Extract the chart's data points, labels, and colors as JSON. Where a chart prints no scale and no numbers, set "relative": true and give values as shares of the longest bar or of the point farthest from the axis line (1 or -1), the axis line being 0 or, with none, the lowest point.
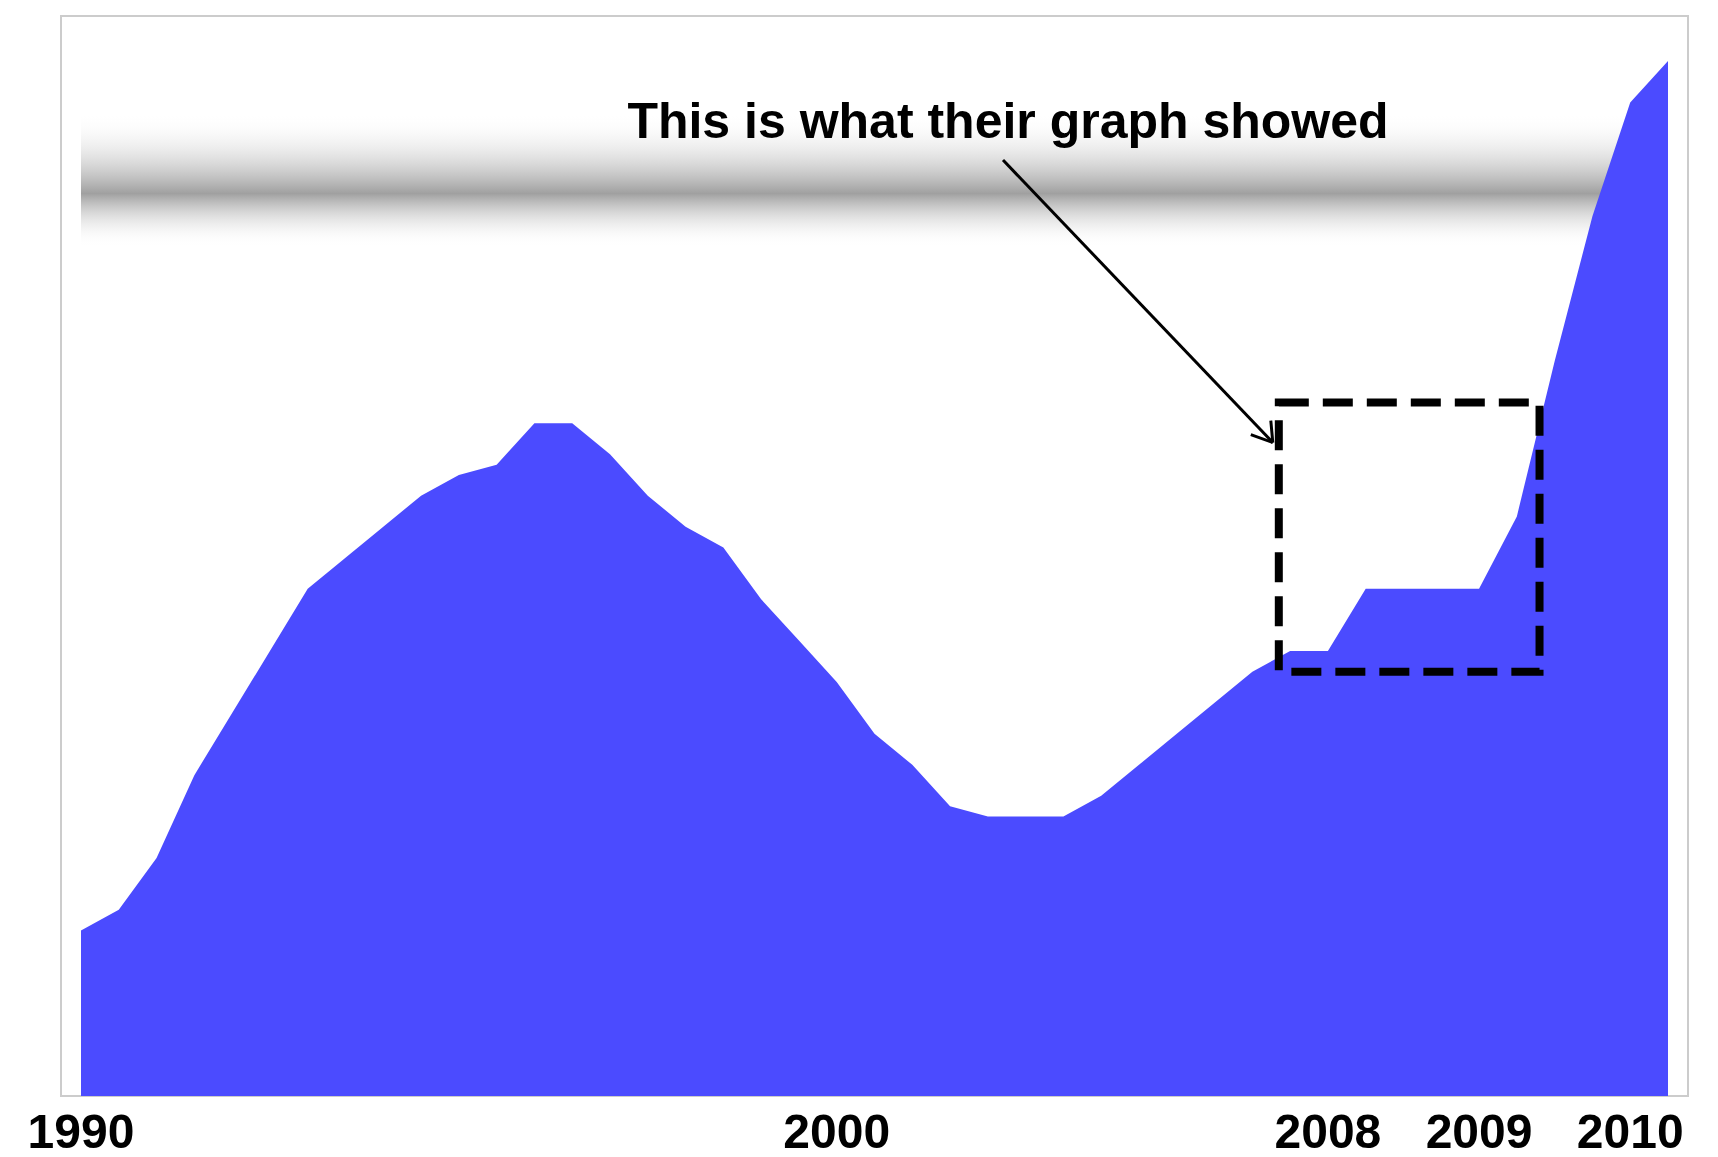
{
  "chart_data": {
    "type": "area",
    "relative": true,
    "color": "#4b4bff",
    "categories": [
      "1990",
      null,
      null,
      null,
      null,
      null,
      null,
      null,
      null,
      null,
      null,
      null,
      null,
      null,
      null,
      null,
      null,
      null,
      null,
      null,
      "2000",
      null,
      null,
      null,
      null,
      null,
      null,
      null,
      null,
      null,
      null,
      null,
      null,
      "2008",
      null,
      null,
      null,
      "2009",
      null,
      null,
      null,
      "2010",
      null
    ],
    "values": [
      0.16,
      0.18,
      0.23,
      0.31,
      0.37,
      0.43,
      0.49,
      0.52,
      0.55,
      0.58,
      0.6,
      0.61,
      0.65,
      0.65,
      0.62,
      0.58,
      0.55,
      0.53,
      0.48,
      0.44,
      0.4,
      0.35,
      0.32,
      0.28,
      0.27,
      0.27,
      0.27,
      0.29,
      0.32,
      0.35,
      0.38,
      0.41,
      0.43,
      0.43,
      0.49,
      0.49,
      0.49,
      0.49,
      0.56,
      0.71,
      0.85,
      0.96,
      1.0
    ],
    "bands": [
      {
        "axis": "y",
        "from": 0.82,
        "to": 0.95,
        "color": "#a0a0a0"
      }
    ],
    "annotations": [
      "This is what their graph showed"
    ]
  }
}
